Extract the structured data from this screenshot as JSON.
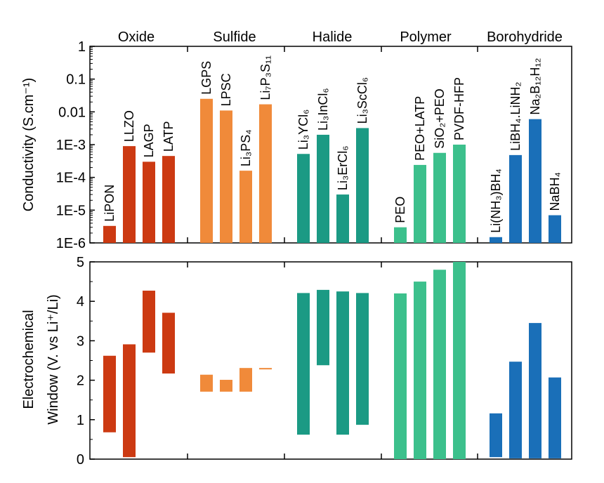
{
  "chart_data": [
    {
      "type": "bar",
      "ylabel": "Conductivity (S.cm⁻¹)",
      "yscale": "log",
      "ylim": [
        1e-06,
        1
      ],
      "yticks": [
        "1E-6",
        "1E-5",
        "1E-4",
        "1E-3",
        "0.01",
        "0.1",
        "1"
      ],
      "groups": [
        "Oxide",
        "Sulfide",
        "Halide",
        "Polymer",
        "Borohydride"
      ],
      "colors": {
        "Oxide": "#cc3a12",
        "Sulfide": "#f08a3a",
        "Halide": "#1b9a84",
        "Polymer": "#3cc08c",
        "Borohydride": "#1a6fb8"
      },
      "bars": [
        {
          "group": "Oxide",
          "label": "LiPON",
          "value": 3.3e-06
        },
        {
          "group": "Oxide",
          "label": "LLZO",
          "value": 0.0009
        },
        {
          "group": "Oxide",
          "label": "LAGP",
          "value": 0.0003
        },
        {
          "group": "Oxide",
          "label": "LATP",
          "value": 0.00045
        },
        {
          "group": "Sulfide",
          "label": "LGPS",
          "value": 0.025
        },
        {
          "group": "Sulfide",
          "label": "LPSC",
          "value": 0.011
        },
        {
          "group": "Sulfide",
          "label": "Li₃PS₄",
          "value": 0.00016
        },
        {
          "group": "Sulfide",
          "label": "Li₇P₃S₁₁",
          "value": 0.017
        },
        {
          "group": "Halide",
          "label": "Li₃YCl₆",
          "value": 0.00052
        },
        {
          "group": "Halide",
          "label": "Li₃InCl₆",
          "value": 0.002
        },
        {
          "group": "Halide",
          "label": "Li₃ErCl₆",
          "value": 3e-05
        },
        {
          "group": "Halide",
          "label": "Li₃ScCl₆",
          "value": 0.0032
        },
        {
          "group": "Polymer",
          "label": "PEO",
          "value": 3e-06
        },
        {
          "group": "Polymer",
          "label": "PEO+LATP",
          "value": 0.00024
        },
        {
          "group": "Polymer",
          "label": "SiO₂+PEO",
          "value": 0.00056
        },
        {
          "group": "Polymer",
          "label": "PVDF-HFP",
          "value": 0.001
        },
        {
          "group": "Borohydride",
          "label": "Li(NH₃)BH₄",
          "value": 1.5e-06
        },
        {
          "group": "Borohydride",
          "label": "LiBH₄.LiNH₂",
          "value": 0.00048
        },
        {
          "group": "Borohydride",
          "label": "Na₂B₁₂H₁₂",
          "value": 0.006
        },
        {
          "group": "Borohydride",
          "label": "NaBH₄",
          "value": 7e-06
        }
      ]
    },
    {
      "type": "bar",
      "ylabel": "Electrochemical Window (V. vs Li⁺/Li)",
      "ylim": [
        0,
        5
      ],
      "yticks": [
        "0",
        "1",
        "2",
        "3",
        "4",
        "5"
      ],
      "ranges": [
        {
          "group": "Oxide",
          "label": "LiPON",
          "low": 0.68,
          "high": 2.62
        },
        {
          "group": "Oxide",
          "label": "LLZO",
          "low": 0.05,
          "high": 2.91
        },
        {
          "group": "Oxide",
          "label": "LAGP",
          "low": 2.7,
          "high": 4.27
        },
        {
          "group": "Oxide",
          "label": "LATP",
          "low": 2.17,
          "high": 3.71
        },
        {
          "group": "Sulfide",
          "label": "LGPS",
          "low": 1.71,
          "high": 2.14
        },
        {
          "group": "Sulfide",
          "label": "LPSC",
          "low": 1.71,
          "high": 2.01
        },
        {
          "group": "Sulfide",
          "label": "Li₃PS₄",
          "low": 1.71,
          "high": 2.31
        },
        {
          "group": "Sulfide",
          "label": "Li₇P₃S₁₁",
          "low": 2.28,
          "high": 2.31
        },
        {
          "group": "Halide",
          "label": "Li₃YCl₆",
          "low": 0.62,
          "high": 4.21
        },
        {
          "group": "Halide",
          "label": "Li₃InCl₆",
          "low": 2.38,
          "high": 4.29
        },
        {
          "group": "Halide",
          "label": "Li₃ErCl₆",
          "low": 0.62,
          "high": 4.25
        },
        {
          "group": "Halide",
          "label": "Li₃ScCl₆",
          "low": 0.87,
          "high": 4.21
        },
        {
          "group": "Polymer",
          "label": "PEO",
          "low": 0,
          "high": 4.2
        },
        {
          "group": "Polymer",
          "label": "PEO+LATP",
          "low": 0,
          "high": 4.5
        },
        {
          "group": "Polymer",
          "label": "SiO₂+PEO",
          "low": 0,
          "high": 4.8
        },
        {
          "group": "Polymer",
          "label": "PVDF-HFP",
          "low": 0,
          "high": 5.0
        },
        {
          "group": "Borohydride",
          "label": "Li(NH₃)BH₄",
          "low": 0.05,
          "high": 1.16
        },
        {
          "group": "Borohydride",
          "label": "LiBH₄.LiNH₂",
          "low": 0.02,
          "high": 2.47
        },
        {
          "group": "Borohydride",
          "label": "Na₂B₁₂H₁₂",
          "low": 0.02,
          "high": 3.45
        },
        {
          "group": "Borohydride",
          "label": "NaBH₄",
          "low": 0.02,
          "high": 2.07
        }
      ]
    }
  ]
}
